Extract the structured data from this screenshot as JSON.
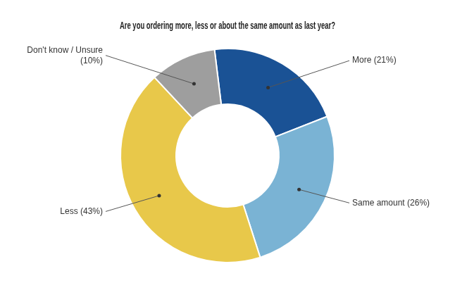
{
  "chart_data": {
    "type": "doughnut",
    "title": "Are you ordering more, less or about the same amount as last year?",
    "values": [
      21,
      26,
      43,
      10
    ],
    "value_labels": [
      "More (21%)",
      "Same amount (26%)",
      "Less (43%)",
      "Don't know / Unsure\n(10%)"
    ],
    "colors": [
      "#1a5295",
      "#7ab3d4",
      "#e8c84a",
      "#9e9e9e"
    ],
    "data_labels": true
  }
}
